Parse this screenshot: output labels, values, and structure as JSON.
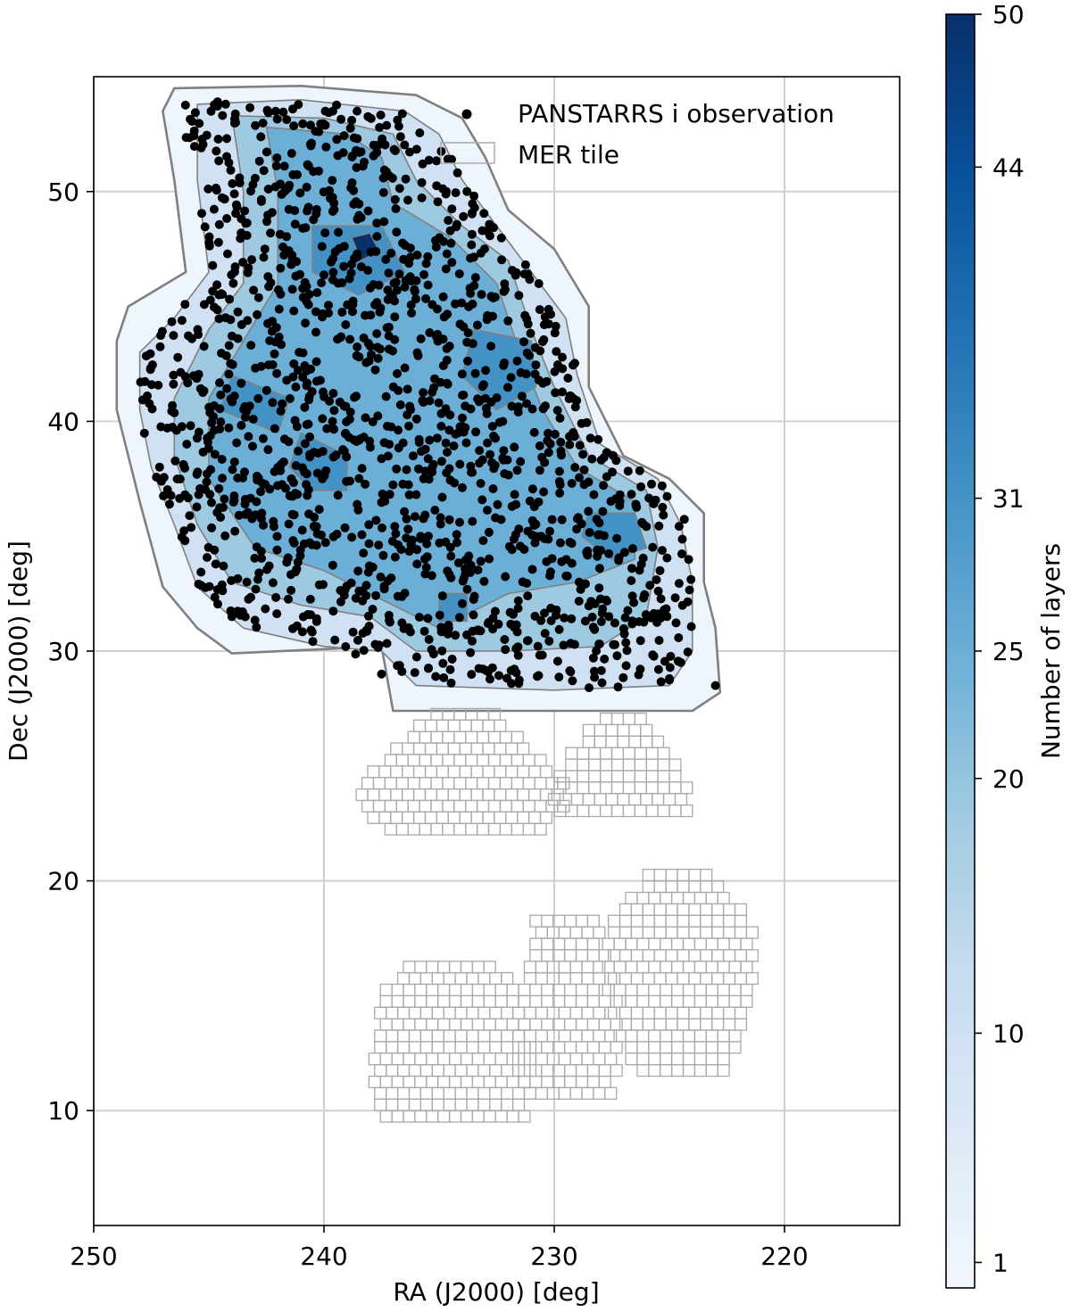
{
  "chart_data": {
    "type": "scatter",
    "title": "",
    "xlabel": "RA (J2000) [deg]",
    "ylabel": "Dec (J2000) [deg]",
    "xlim": [
      250,
      215
    ],
    "ylim": [
      5,
      55
    ],
    "x_ticks": [
      250,
      240,
      230,
      220
    ],
    "y_ticks": [
      10,
      20,
      30,
      40,
      50
    ],
    "grid": true,
    "legend_position": "top-right",
    "legend": [
      {
        "label": "PANSTARRS i observation",
        "marker": "filled-circle",
        "color": "#000000"
      },
      {
        "label": "MER tile",
        "marker": "hollow-square",
        "color": "#aaaaaa"
      }
    ],
    "colorbar": {
      "label": "Number of layers",
      "min": 0,
      "max": 50,
      "ticks": [
        1,
        10,
        20,
        25,
        31,
        44,
        50
      ],
      "colors": [
        "#f2f7fd",
        "#dbe9f6",
        "#c6dbef",
        "#9ecae1",
        "#6baed6",
        "#4292c6",
        "#2171b5",
        "#08519c",
        "#08306b"
      ]
    },
    "coverage_contours": [
      {
        "level": 1,
        "color": "#eef5fc",
        "polygon": [
          [
            246.5,
            54.5
          ],
          [
            241,
            54.6
          ],
          [
            236,
            54.2
          ],
          [
            234,
            53.2
          ],
          [
            233,
            51.5
          ],
          [
            232,
            49.2
          ],
          [
            230,
            47.5
          ],
          [
            228.5,
            45
          ],
          [
            228.5,
            41.5
          ],
          [
            227,
            38.5
          ],
          [
            225,
            37.5
          ],
          [
            223.5,
            36
          ],
          [
            223.5,
            33
          ],
          [
            223,
            31
          ],
          [
            222.8,
            28.2
          ],
          [
            224,
            27.4
          ],
          [
            237,
            27.4
          ],
          [
            237.5,
            30.2
          ],
          [
            244,
            29.9
          ],
          [
            245.5,
            31
          ],
          [
            247,
            32.8
          ],
          [
            248,
            36.5
          ],
          [
            249,
            40.5
          ],
          [
            249,
            43.5
          ],
          [
            248.5,
            45
          ],
          [
            246,
            46.5
          ],
          [
            246.5,
            50.5
          ],
          [
            247,
            53.5
          ]
        ]
      },
      {
        "level": 10,
        "color": "#cfe1f2",
        "polygon": [
          [
            245.5,
            53.8
          ],
          [
            241,
            54
          ],
          [
            236.5,
            53.5
          ],
          [
            235,
            52.5
          ],
          [
            234,
            50.5
          ],
          [
            232.5,
            48.5
          ],
          [
            231,
            46.5
          ],
          [
            229.5,
            44.5
          ],
          [
            229,
            42
          ],
          [
            228,
            39
          ],
          [
            225.5,
            37.5
          ],
          [
            224.5,
            35.5
          ],
          [
            224,
            33
          ],
          [
            224,
            30
          ],
          [
            225,
            28.5
          ],
          [
            230,
            28.3
          ],
          [
            236,
            28.5
          ],
          [
            237.5,
            30
          ],
          [
            240,
            30.2
          ],
          [
            243.5,
            31
          ],
          [
            245.5,
            32.8
          ],
          [
            246.5,
            35.5
          ],
          [
            247.5,
            38
          ],
          [
            248,
            40.5
          ],
          [
            248,
            43
          ],
          [
            246.5,
            44.5
          ],
          [
            245,
            46.5
          ],
          [
            245.5,
            50.5
          ]
        ]
      },
      {
        "level": 20,
        "color": "#9ecae1",
        "polygon": [
          [
            244,
            53.3
          ],
          [
            240,
            53.2
          ],
          [
            237,
            52.5
          ],
          [
            236,
            50.5
          ],
          [
            234,
            48.5
          ],
          [
            232,
            47
          ],
          [
            231,
            44
          ],
          [
            230,
            41.5
          ],
          [
            228.5,
            38.5
          ],
          [
            226,
            37
          ],
          [
            225.5,
            34.5
          ],
          [
            226,
            31.5
          ],
          [
            228,
            30.2
          ],
          [
            232,
            30
          ],
          [
            236,
            30
          ],
          [
            238,
            31.5
          ],
          [
            241,
            32
          ],
          [
            244,
            33
          ],
          [
            245.5,
            35.5
          ],
          [
            246.5,
            38.5
          ],
          [
            246.5,
            41
          ],
          [
            245,
            44
          ],
          [
            243.5,
            46
          ],
          [
            243.5,
            50
          ]
        ]
      },
      {
        "level": 25,
        "color": "#6baed6",
        "polygon": [
          [
            242.5,
            52.8
          ],
          [
            239,
            52.5
          ],
          [
            237.5,
            51.5
          ],
          [
            237,
            49.5
          ],
          [
            234.5,
            48
          ],
          [
            232.5,
            46
          ],
          [
            231.5,
            43
          ],
          [
            230.5,
            40.5
          ],
          [
            229,
            38
          ],
          [
            226.5,
            36.5
          ],
          [
            226.5,
            34
          ],
          [
            229,
            33
          ],
          [
            232,
            32.5
          ],
          [
            235,
            31
          ],
          [
            237,
            32
          ],
          [
            240,
            33.5
          ],
          [
            243,
            34.5
          ],
          [
            245,
            37.5
          ],
          [
            245,
            41
          ],
          [
            243.5,
            43.5
          ],
          [
            242,
            46
          ],
          [
            242,
            50
          ]
        ]
      },
      {
        "level": 31,
        "color": "#4292c6",
        "polygon": [
          [
            240.5,
            48.5
          ],
          [
            237.5,
            48.5
          ],
          [
            236.5,
            46.5
          ],
          [
            238.5,
            45.5
          ],
          [
            240.5,
            46.5
          ]
        ]
      },
      {
        "level": 31,
        "color": "#4292c6",
        "polygon": [
          [
            233.5,
            44
          ],
          [
            231,
            43.5
          ],
          [
            230.8,
            41.5
          ],
          [
            232.5,
            40.5
          ],
          [
            234,
            42
          ]
        ]
      },
      {
        "level": 31,
        "color": "#4292c6",
        "polygon": [
          [
            244,
            42
          ],
          [
            241.5,
            41
          ],
          [
            242,
            39.5
          ],
          [
            244.5,
            40.5
          ]
        ]
      },
      {
        "level": 31,
        "color": "#4292c6",
        "polygon": [
          [
            241,
            39.5
          ],
          [
            239,
            38.5
          ],
          [
            239,
            37
          ],
          [
            240.5,
            37
          ],
          [
            241.5,
            38
          ]
        ]
      },
      {
        "level": 31,
        "color": "#4292c6",
        "polygon": [
          [
            228.5,
            36
          ],
          [
            226.5,
            36
          ],
          [
            226,
            34.5
          ],
          [
            227.5,
            34
          ],
          [
            228.8,
            35
          ]
        ]
      },
      {
        "level": 31,
        "color": "#4292c6",
        "polygon": [
          [
            235,
            32.5
          ],
          [
            233.8,
            32.5
          ],
          [
            233.8,
            31.3
          ],
          [
            235,
            31.3
          ]
        ]
      },
      {
        "level": 44,
        "color": "#08306b",
        "polygon": [
          [
            238.8,
            48
          ],
          [
            238,
            48.2
          ],
          [
            237.6,
            47.4
          ],
          [
            238.4,
            47
          ]
        ]
      }
    ],
    "mer_tile_regions": [
      {
        "ra_min": 229.5,
        "ra_max": 238.2,
        "dec_min": 22.0,
        "dec_max": 27.3,
        "ra_half_width": [
          3.5,
          4.5,
          4.5,
          3.5,
          2.5,
          1.5
        ]
      },
      {
        "ra_min": 223.8,
        "ra_max": 230.2,
        "dec_min": 22.8,
        "dec_max": 27.3,
        "ra_half_width": [
          3.0,
          3.0,
          2.5,
          1.8,
          1.0
        ]
      },
      {
        "ra_min": 230.8,
        "ra_max": 237.8,
        "dec_min": 9.5,
        "dec_max": 16.7,
        "ra_half_width": [
          3.2,
          3.4,
          3.4,
          3.4,
          3.3,
          3.3,
          3.0,
          2.0
        ]
      },
      {
        "ra_min": 226.8,
        "ra_max": 231.8,
        "dec_min": 10.5,
        "dec_max": 18.5,
        "ra_half_width": [
          2.0,
          2.2,
          2.3,
          2.3,
          2.2,
          2.0,
          1.8,
          1.6,
          1.5
        ]
      },
      {
        "ra_min": 221.0,
        "ra_max": 227.8,
        "dec_min": 11.5,
        "dec_max": 20.3,
        "ra_half_width": [
          2.0,
          2.5,
          2.8,
          3.0,
          3.2,
          3.3,
          3.3,
          3.0,
          2.2,
          1.5
        ]
      }
    ],
    "observation_count_approx": 1500,
    "observation_footprint": [
      [
        246.5,
        54
      ],
      [
        241,
        54
      ],
      [
        236.5,
        53.5
      ],
      [
        235,
        52.5
      ],
      [
        234,
        50.5
      ],
      [
        232.5,
        48.5
      ],
      [
        231,
        46.5
      ],
      [
        229.5,
        44.5
      ],
      [
        229,
        42
      ],
      [
        228,
        39
      ],
      [
        225.5,
        37.5
      ],
      [
        224.2,
        35.5
      ],
      [
        224,
        33
      ],
      [
        224,
        30
      ],
      [
        224.5,
        28.5
      ],
      [
        230,
        28.3
      ],
      [
        236,
        28.3
      ],
      [
        237.5,
        29.5
      ],
      [
        240,
        30.2
      ],
      [
        243.5,
        31
      ],
      [
        245.5,
        32.8
      ],
      [
        246.5,
        35.5
      ],
      [
        247.5,
        38
      ],
      [
        248,
        40.5
      ],
      [
        248,
        43.5
      ],
      [
        246.5,
        44.5
      ],
      [
        245,
        46.5
      ],
      [
        245.5,
        50.5
      ]
    ],
    "observation_outliers": [
      [
        223,
        28.5
      ],
      [
        224.5,
        29.5
      ],
      [
        225,
        28.8
      ],
      [
        237.5,
        29
      ],
      [
        244,
        31.5
      ]
    ]
  }
}
